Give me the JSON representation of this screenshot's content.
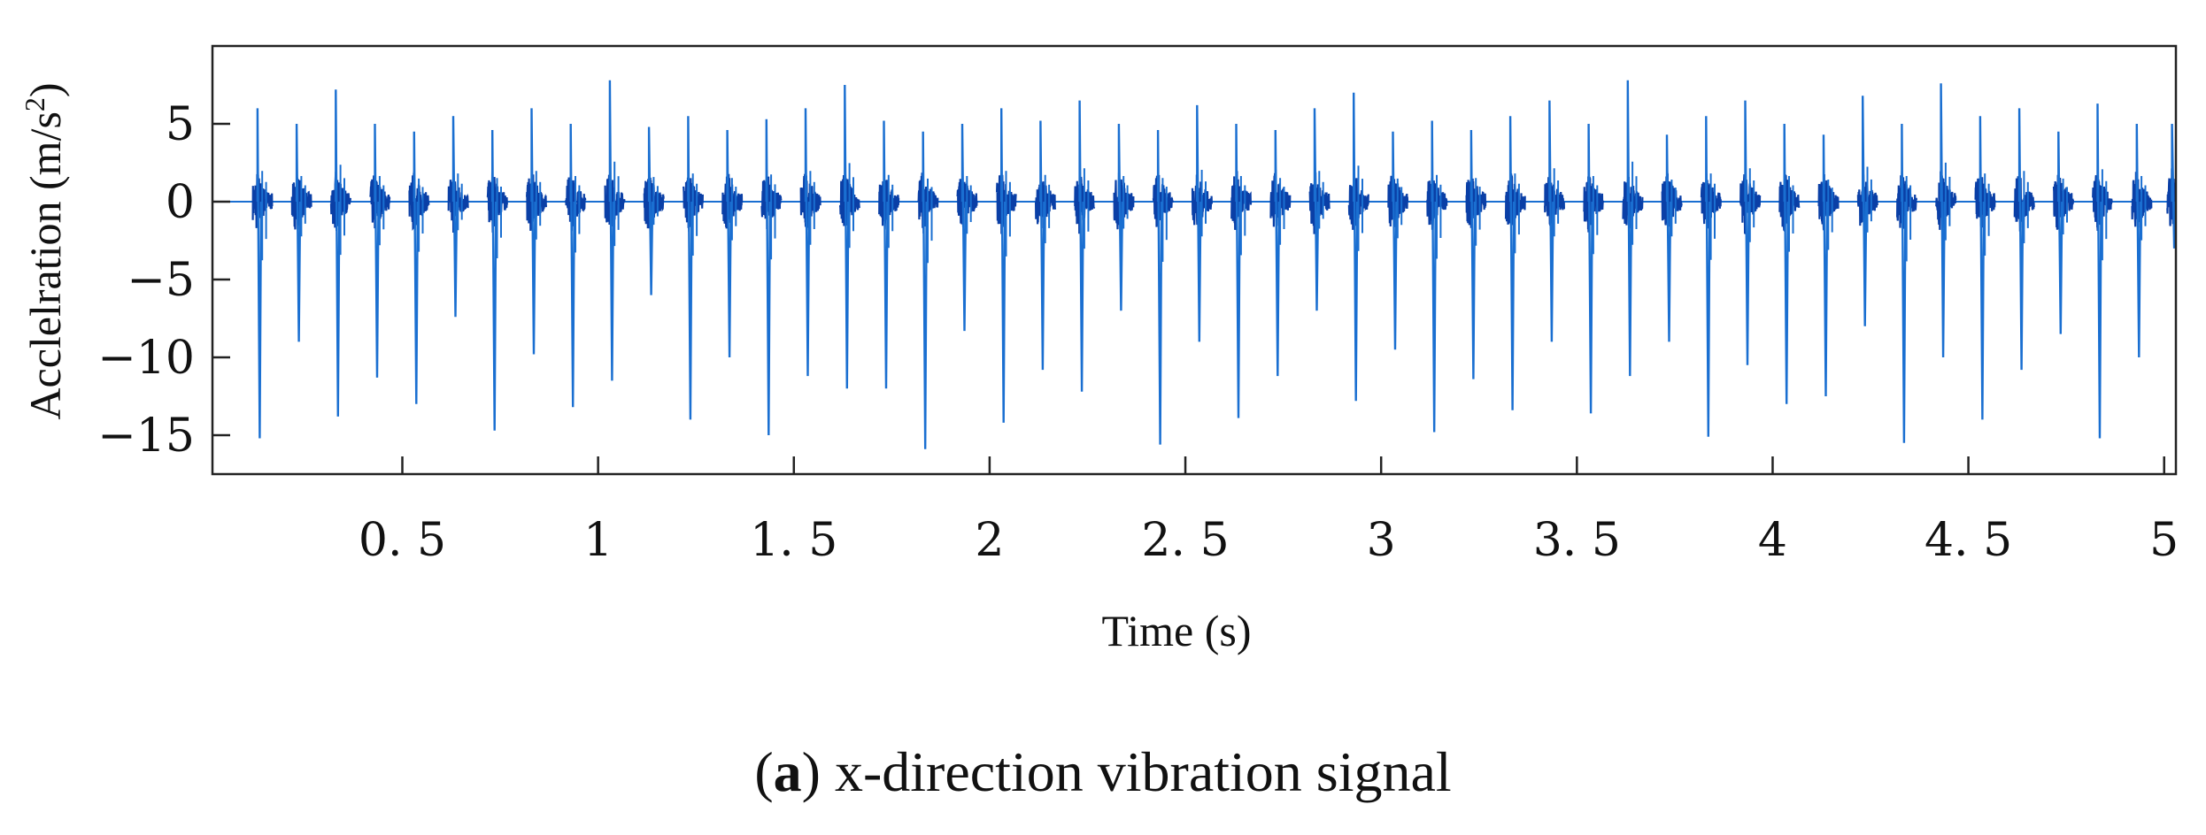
{
  "chart_data": {
    "type": "line",
    "title": "",
    "xlabel": "Time (s)",
    "ylabel_base": "Acclelration (m/s",
    "ylabel_sup": "2",
    "ylabel_close": ")",
    "xlim": [
      0.015,
      5.03
    ],
    "ylim": [
      -17.5,
      10
    ],
    "xticks": [
      0.5,
      1,
      1.5,
      2,
      2.5,
      3,
      3.5,
      4,
      4.5,
      5
    ],
    "xtick_labels": [
      "0. 5",
      "1",
      "1. 5",
      "2",
      "2. 5",
      "3",
      "3. 5",
      "4",
      "4. 5",
      "5"
    ],
    "yticks": [
      5,
      0,
      -5,
      -10,
      -15
    ],
    "ytick_labels": [
      "5",
      "0",
      "−5",
      "−10",
      "−15"
    ],
    "grid": false,
    "line_color": "#1a6fd1",
    "series": [
      {
        "name": "x-direction acceleration",
        "description_values": "impulse peaks every ~0.1 s",
        "impulse_times": [
          0.13,
          0.23,
          0.33,
          0.43,
          0.53,
          0.63,
          0.73,
          0.83,
          0.93,
          1.03,
          1.13,
          1.23,
          1.33,
          1.43,
          1.53,
          1.63,
          1.73,
          1.83,
          1.93,
          2.03,
          2.13,
          2.23,
          2.33,
          2.43,
          2.53,
          2.63,
          2.73,
          2.83,
          2.93,
          3.03,
          3.13,
          3.23,
          3.33,
          3.43,
          3.53,
          3.63,
          3.73,
          3.83,
          3.93,
          4.03,
          4.13,
          4.23,
          4.33,
          4.43,
          4.53,
          4.63,
          4.73,
          4.83,
          4.93,
          5.02
        ],
        "impulse_max": [
          6.0,
          5.0,
          7.2,
          5.0,
          4.5,
          5.5,
          4.6,
          6.0,
          5.0,
          7.8,
          4.8,
          5.5,
          4.6,
          5.3,
          6.0,
          7.5,
          5.2,
          4.5,
          5.0,
          6.0,
          5.2,
          6.5,
          5.0,
          4.6,
          6.2,
          5.0,
          4.6,
          6.0,
          7.0,
          4.5,
          5.2,
          4.6,
          5.5,
          6.5,
          5.0,
          7.8,
          4.3,
          5.5,
          6.5,
          5.0,
          4.3,
          6.8,
          5.0,
          7.6,
          5.5,
          6.0,
          4.5,
          6.3,
          5.0,
          5.0
        ],
        "impulse_min": [
          -15.2,
          -9.0,
          -13.8,
          -11.3,
          -13.0,
          -7.4,
          -14.7,
          -9.8,
          -13.2,
          -11.5,
          -6.0,
          -14.0,
          -10.0,
          -15.0,
          -11.2,
          -12.0,
          -12.0,
          -15.9,
          -8.3,
          -14.2,
          -10.8,
          -12.2,
          -7.0,
          -15.6,
          -9.0,
          -13.9,
          -11.2,
          -7.0,
          -12.8,
          -9.5,
          -14.8,
          -11.4,
          -13.4,
          -9.0,
          -13.6,
          -11.2,
          -9.0,
          -15.1,
          -10.5,
          -13.0,
          -12.5,
          -8.0,
          -15.5,
          -10.0,
          -14.0,
          -10.8,
          -8.5,
          -15.2,
          -10.0,
          -3.0
        ]
      }
    ]
  },
  "caption": {
    "label": "a",
    "text": " x-direction vibration signal"
  }
}
